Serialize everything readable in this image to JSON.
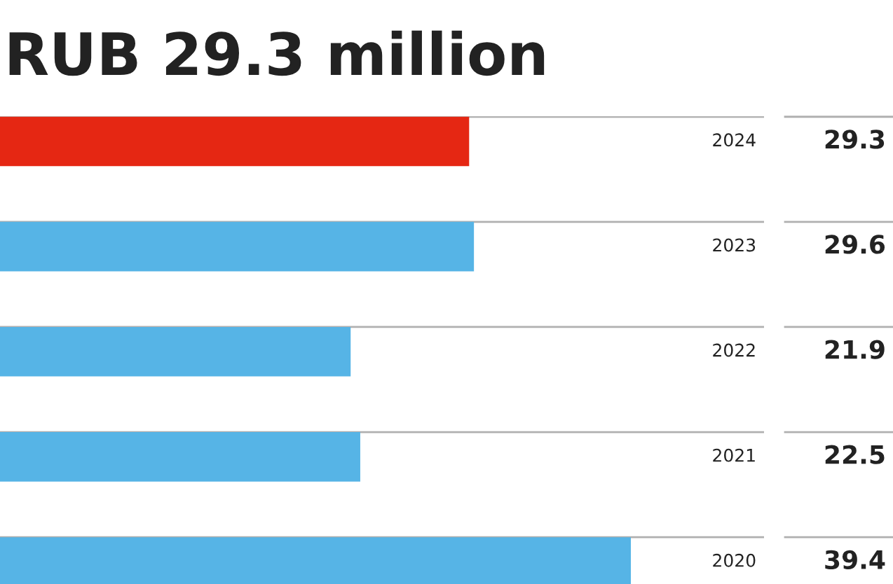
{
  "chart_data": {
    "type": "bar",
    "orientation": "horizontal",
    "title": "RUB 29.3 million",
    "categories": [
      "2024",
      "2023",
      "2022",
      "2021",
      "2020"
    ],
    "values": [
      29.3,
      29.6,
      21.9,
      22.5,
      39.4
    ],
    "colors": [
      "#e52713",
      "#56b4e6",
      "#56b4e6",
      "#56b4e6",
      "#56b4e6"
    ],
    "data_labels": true
  }
}
